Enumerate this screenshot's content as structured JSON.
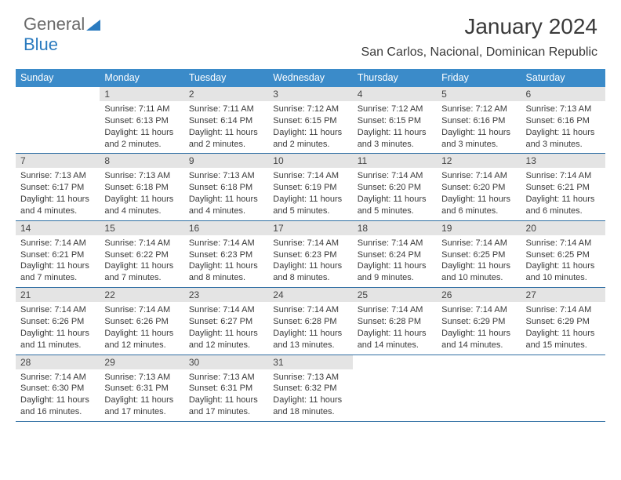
{
  "logo": {
    "text1": "General",
    "text2": "Blue"
  },
  "title": "January 2024",
  "location": "San Carlos, Nacional, Dominican Republic",
  "colors": {
    "header_bg": "#3b8bc9",
    "header_text": "#ffffff",
    "daynum_bg": "#e4e4e4",
    "week_border": "#2f6ea3",
    "body_text": "#3a3a3a",
    "logo_gray": "#6a6a6a",
    "logo_blue": "#2b7bbf",
    "page_bg": "#ffffff"
  },
  "fonts": {
    "title_size_pt": 21,
    "location_size_pt": 12,
    "header_size_pt": 9.5,
    "daynum_size_pt": 9,
    "info_size_pt": 8.3
  },
  "dayHeaders": [
    "Sunday",
    "Monday",
    "Tuesday",
    "Wednesday",
    "Thursday",
    "Friday",
    "Saturday"
  ],
  "weeks": [
    [
      {
        "n": "",
        "sunrise": "",
        "sunset": "",
        "daylight": ""
      },
      {
        "n": "1",
        "sunrise": "7:11 AM",
        "sunset": "6:13 PM",
        "daylight": "11 hours and 2 minutes."
      },
      {
        "n": "2",
        "sunrise": "7:11 AM",
        "sunset": "6:14 PM",
        "daylight": "11 hours and 2 minutes."
      },
      {
        "n": "3",
        "sunrise": "7:12 AM",
        "sunset": "6:15 PM",
        "daylight": "11 hours and 2 minutes."
      },
      {
        "n": "4",
        "sunrise": "7:12 AM",
        "sunset": "6:15 PM",
        "daylight": "11 hours and 3 minutes."
      },
      {
        "n": "5",
        "sunrise": "7:12 AM",
        "sunset": "6:16 PM",
        "daylight": "11 hours and 3 minutes."
      },
      {
        "n": "6",
        "sunrise": "7:13 AM",
        "sunset": "6:16 PM",
        "daylight": "11 hours and 3 minutes."
      }
    ],
    [
      {
        "n": "7",
        "sunrise": "7:13 AM",
        "sunset": "6:17 PM",
        "daylight": "11 hours and 4 minutes."
      },
      {
        "n": "8",
        "sunrise": "7:13 AM",
        "sunset": "6:18 PM",
        "daylight": "11 hours and 4 minutes."
      },
      {
        "n": "9",
        "sunrise": "7:13 AM",
        "sunset": "6:18 PM",
        "daylight": "11 hours and 4 minutes."
      },
      {
        "n": "10",
        "sunrise": "7:14 AM",
        "sunset": "6:19 PM",
        "daylight": "11 hours and 5 minutes."
      },
      {
        "n": "11",
        "sunrise": "7:14 AM",
        "sunset": "6:20 PM",
        "daylight": "11 hours and 5 minutes."
      },
      {
        "n": "12",
        "sunrise": "7:14 AM",
        "sunset": "6:20 PM",
        "daylight": "11 hours and 6 minutes."
      },
      {
        "n": "13",
        "sunrise": "7:14 AM",
        "sunset": "6:21 PM",
        "daylight": "11 hours and 6 minutes."
      }
    ],
    [
      {
        "n": "14",
        "sunrise": "7:14 AM",
        "sunset": "6:21 PM",
        "daylight": "11 hours and 7 minutes."
      },
      {
        "n": "15",
        "sunrise": "7:14 AM",
        "sunset": "6:22 PM",
        "daylight": "11 hours and 7 minutes."
      },
      {
        "n": "16",
        "sunrise": "7:14 AM",
        "sunset": "6:23 PM",
        "daylight": "11 hours and 8 minutes."
      },
      {
        "n": "17",
        "sunrise": "7:14 AM",
        "sunset": "6:23 PM",
        "daylight": "11 hours and 8 minutes."
      },
      {
        "n": "18",
        "sunrise": "7:14 AM",
        "sunset": "6:24 PM",
        "daylight": "11 hours and 9 minutes."
      },
      {
        "n": "19",
        "sunrise": "7:14 AM",
        "sunset": "6:25 PM",
        "daylight": "11 hours and 10 minutes."
      },
      {
        "n": "20",
        "sunrise": "7:14 AM",
        "sunset": "6:25 PM",
        "daylight": "11 hours and 10 minutes."
      }
    ],
    [
      {
        "n": "21",
        "sunrise": "7:14 AM",
        "sunset": "6:26 PM",
        "daylight": "11 hours and 11 minutes."
      },
      {
        "n": "22",
        "sunrise": "7:14 AM",
        "sunset": "6:26 PM",
        "daylight": "11 hours and 12 minutes."
      },
      {
        "n": "23",
        "sunrise": "7:14 AM",
        "sunset": "6:27 PM",
        "daylight": "11 hours and 12 minutes."
      },
      {
        "n": "24",
        "sunrise": "7:14 AM",
        "sunset": "6:28 PM",
        "daylight": "11 hours and 13 minutes."
      },
      {
        "n": "25",
        "sunrise": "7:14 AM",
        "sunset": "6:28 PM",
        "daylight": "11 hours and 14 minutes."
      },
      {
        "n": "26",
        "sunrise": "7:14 AM",
        "sunset": "6:29 PM",
        "daylight": "11 hours and 14 minutes."
      },
      {
        "n": "27",
        "sunrise": "7:14 AM",
        "sunset": "6:29 PM",
        "daylight": "11 hours and 15 minutes."
      }
    ],
    [
      {
        "n": "28",
        "sunrise": "7:14 AM",
        "sunset": "6:30 PM",
        "daylight": "11 hours and 16 minutes."
      },
      {
        "n": "29",
        "sunrise": "7:13 AM",
        "sunset": "6:31 PM",
        "daylight": "11 hours and 17 minutes."
      },
      {
        "n": "30",
        "sunrise": "7:13 AM",
        "sunset": "6:31 PM",
        "daylight": "11 hours and 17 minutes."
      },
      {
        "n": "31",
        "sunrise": "7:13 AM",
        "sunset": "6:32 PM",
        "daylight": "11 hours and 18 minutes."
      },
      {
        "n": "",
        "sunrise": "",
        "sunset": "",
        "daylight": ""
      },
      {
        "n": "",
        "sunrise": "",
        "sunset": "",
        "daylight": ""
      },
      {
        "n": "",
        "sunrise": "",
        "sunset": "",
        "daylight": ""
      }
    ]
  ]
}
